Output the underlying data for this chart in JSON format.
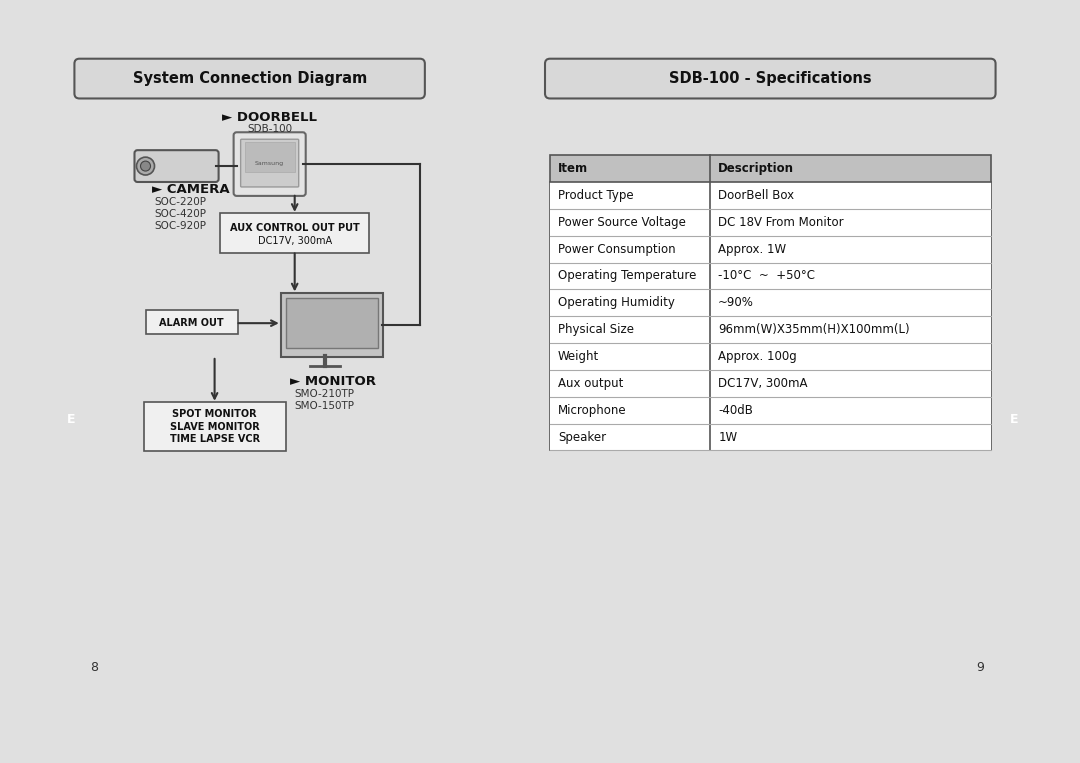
{
  "bg_color": "#e0e0e0",
  "page_bg": "#ffffff",
  "left_panel": {
    "title": "System Connection Diagram",
    "doorbell_label": "► DOORBELL",
    "doorbell_sublabel": "SDB-100",
    "camera_label": "► CAMERA",
    "camera_models": [
      "SOC-220P",
      "SOC-420P",
      "SOC-920P"
    ],
    "aux_box_text": [
      "AUX CONTROL OUT PUT",
      "DC17V, 300mA"
    ],
    "alarm_box_text": "ALARM OUT",
    "monitor_label": "► MONITOR",
    "monitor_models": [
      "SMO-210TP",
      "SMO-150TP"
    ],
    "spot_box_text": [
      "SPOT MONITOR",
      "SLAVE MONITOR",
      "TIME LAPSE VCR"
    ],
    "page_num": "8"
  },
  "right_panel": {
    "title": "SDB-100 - Specifications",
    "table_header": [
      "Item",
      "Description"
    ],
    "table_rows": [
      [
        "Product Type",
        "DoorBell Box"
      ],
      [
        "Power Source Voltage",
        "DC 18V From Monitor"
      ],
      [
        "Power Consumption",
        "Approx. 1W"
      ],
      [
        "Operating Temperature",
        "-10°C  ~  +50°C"
      ],
      [
        "Operating Humidity",
        "~90%"
      ],
      [
        "Physical Size",
        "96mm(W)X35mm(H)X100mm(L)"
      ],
      [
        "Weight",
        "Approx. 100g"
      ],
      [
        "Aux output",
        "DC17V, 300mA"
      ],
      [
        "Microphone",
        "-40dB"
      ],
      [
        "Speaker",
        "1W"
      ]
    ],
    "page_num": "9"
  },
  "tab_color": "#222222",
  "tab_text_color": "#ffffff",
  "line_color": "#333333",
  "header_bg": "#c0c0c0"
}
